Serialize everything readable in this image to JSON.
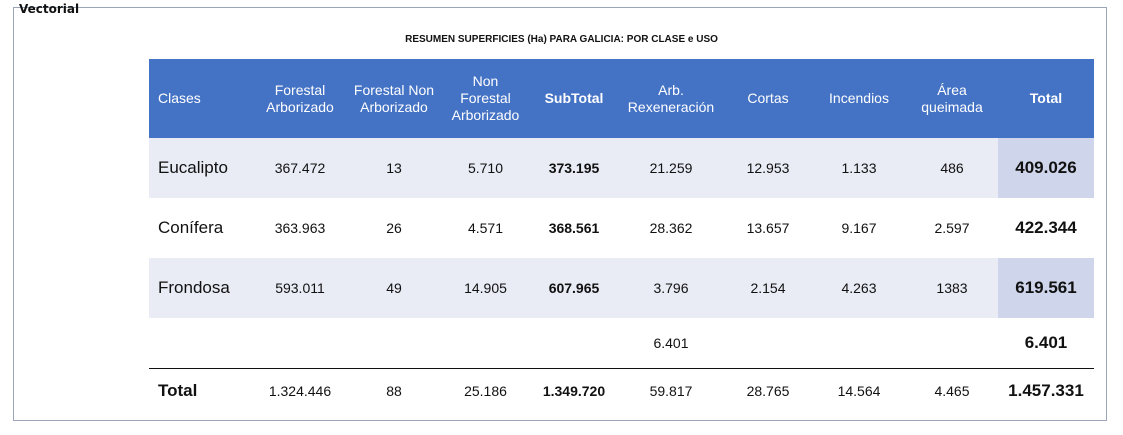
{
  "label": "Vectorial",
  "title": "RESUMEN SUPERFICIES (Ha) PARA GALICIA: POR CLASE e USO",
  "headers": [
    {
      "line1": "Clases"
    },
    {
      "line1": "Forestal",
      "line2": "Arborizado"
    },
    {
      "line1": "Forestal Non",
      "line2": "Arborizado"
    },
    {
      "line1": "Non",
      "line2": "Forestal",
      "line3": "Arborizado"
    },
    {
      "line1": "SubTotal"
    },
    {
      "line1": "Arb.",
      "line2": "Rexeneración"
    },
    {
      "line1": "Cortas"
    },
    {
      "line1": "Incendios"
    },
    {
      "line1": "Área",
      "line2": "queimada"
    },
    {
      "line1": "Total"
    }
  ],
  "rows": [
    {
      "cells": [
        "Eucalipto",
        "367.472",
        "13",
        "5.710",
        "373.195",
        "21.259",
        "12.953",
        "1.133",
        "486",
        "409.026"
      ]
    },
    {
      "cells": [
        "Conífera",
        "363.963",
        "26",
        "4.571",
        "368.561",
        "28.362",
        "13.657",
        "9.167",
        "2.597",
        "422.344"
      ]
    },
    {
      "cells": [
        "Frondosa",
        "593.011",
        "49",
        "14.905",
        "607.965",
        "3.796",
        "2.154",
        "4.263",
        "1383",
        "619.561"
      ]
    },
    {
      "cells": [
        "",
        "",
        "",
        "",
        "",
        "6.401",
        "",
        "",
        "",
        "6.401"
      ]
    },
    {
      "cells": [
        "Total",
        "1.324.446",
        "88",
        "25.186",
        "1.349.720",
        "59.817",
        "28.765",
        "14.564",
        "4.465",
        "1.457.331"
      ]
    }
  ]
}
